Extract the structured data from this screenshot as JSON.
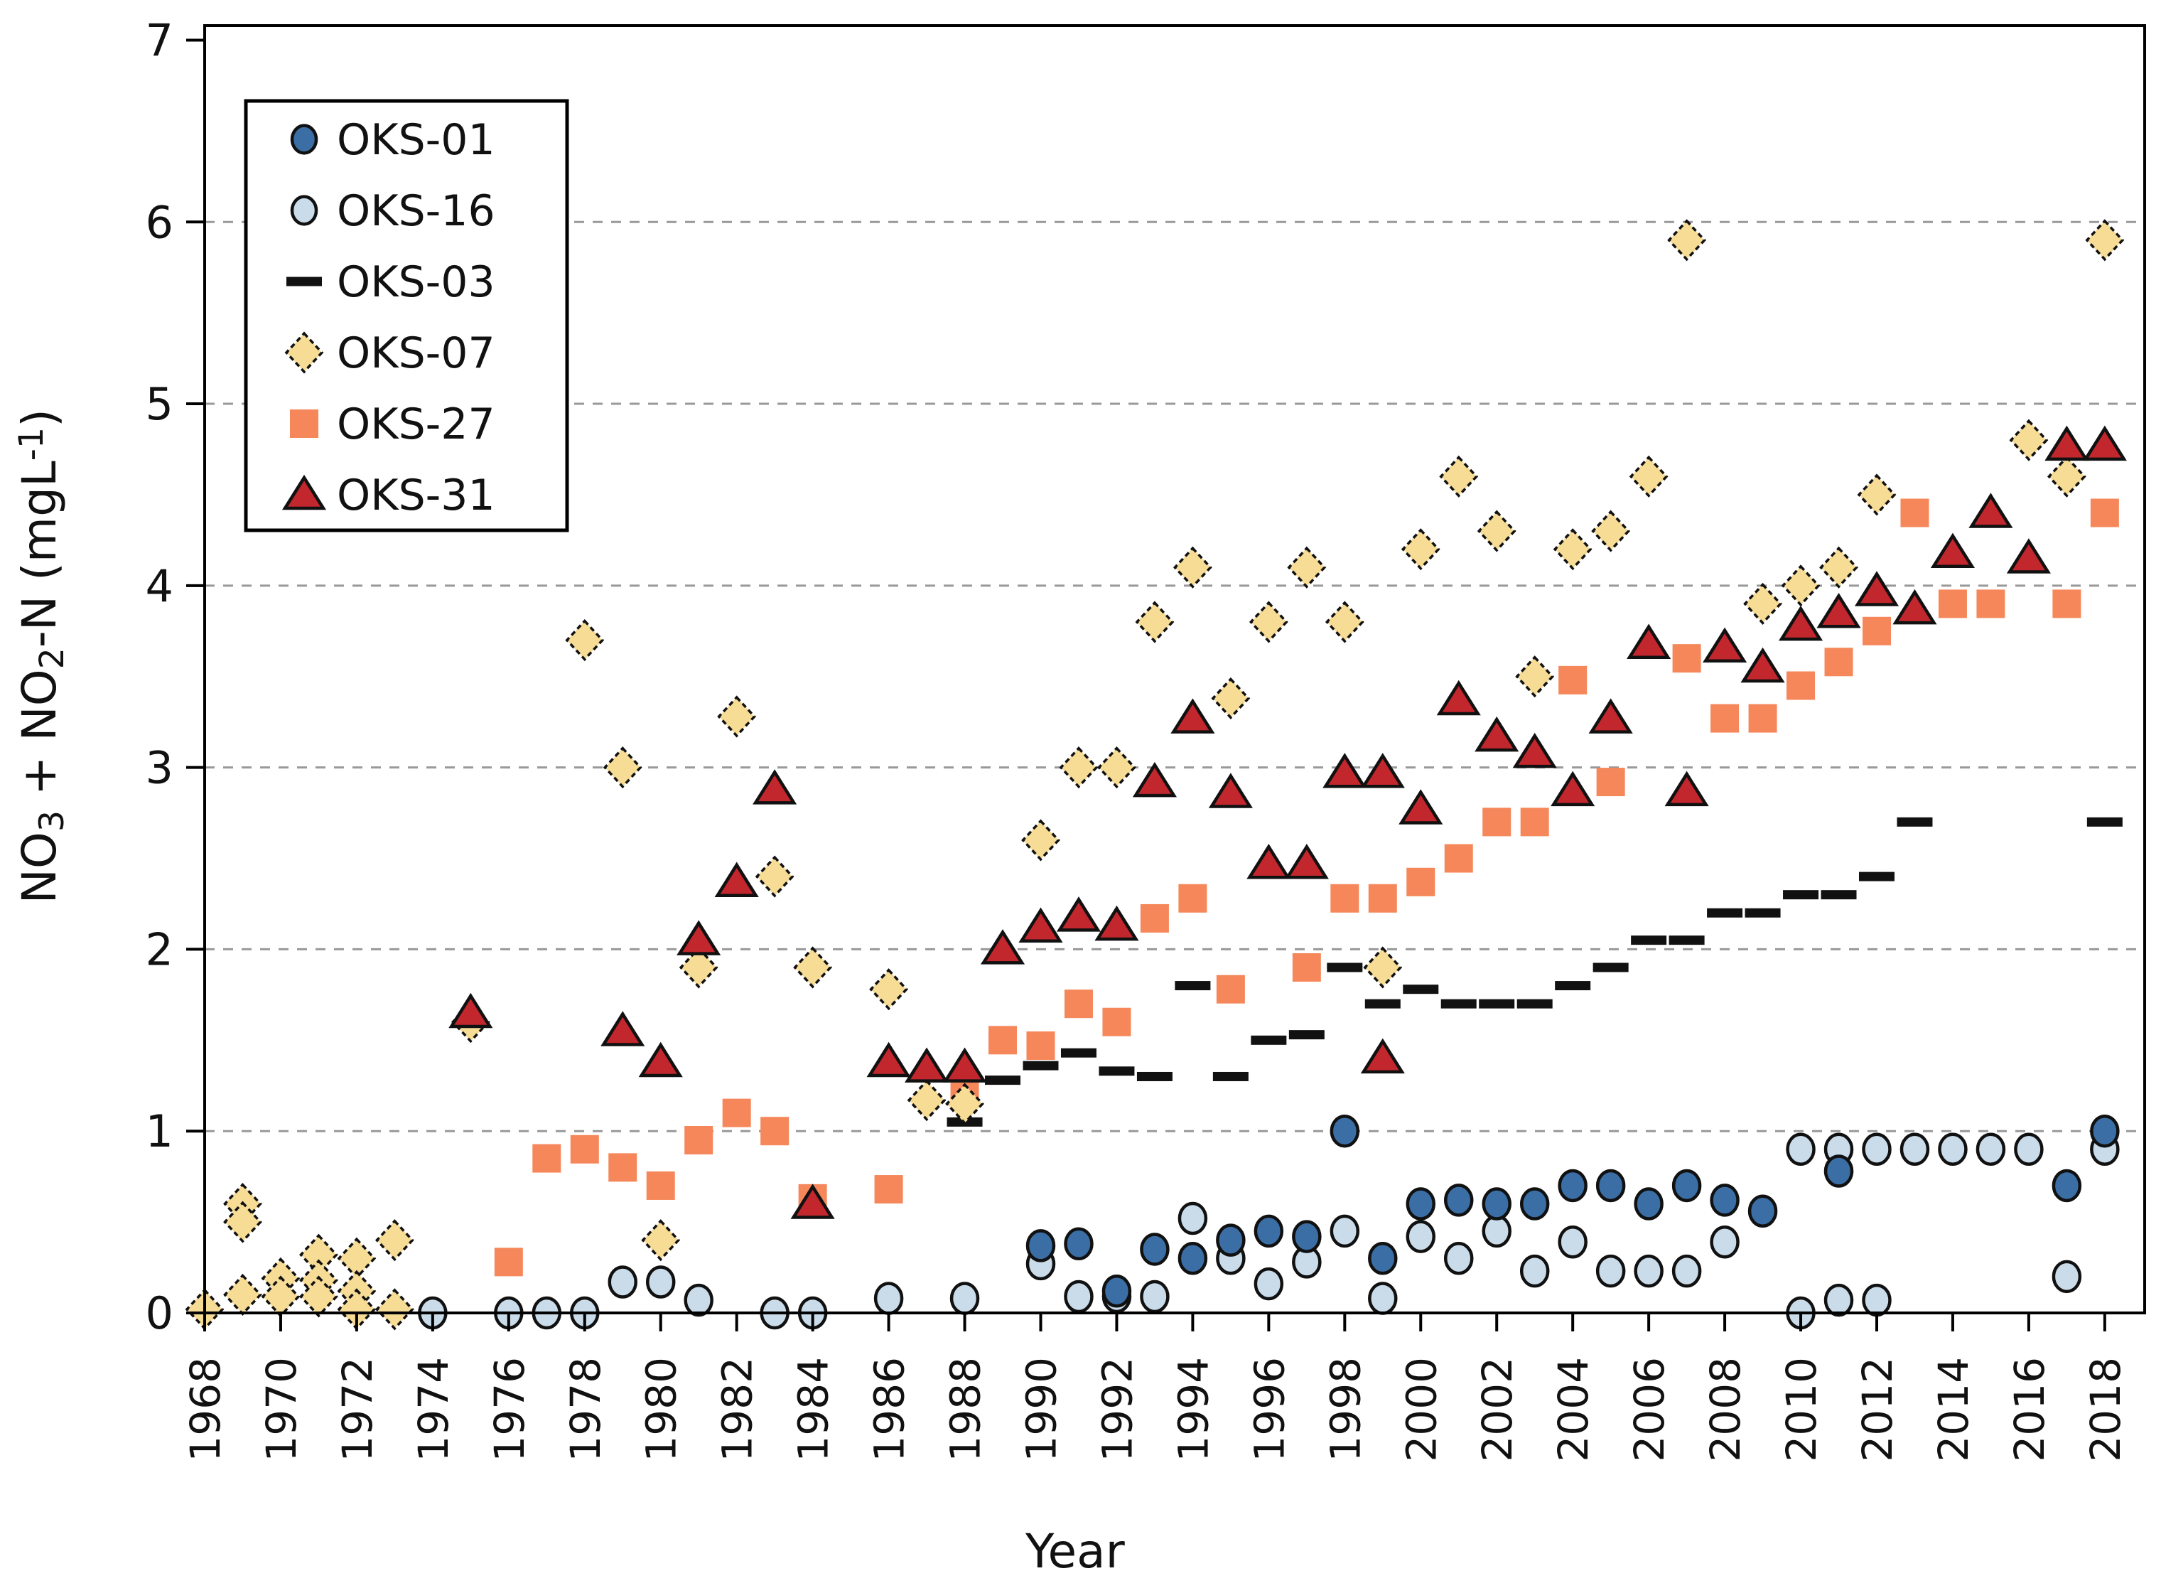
{
  "axes": {
    "x_label": "Year",
    "y_label_plain": "NO3 + NO2-N (mgL-1)",
    "y_label_rich": [
      {
        "t": "NO"
      },
      {
        "sub": "3"
      },
      {
        "t": " + NO"
      },
      {
        "sub": "2"
      },
      {
        "t": "-N (mgL"
      },
      {
        "sup": "-1"
      },
      {
        "t": ")"
      }
    ],
    "y_ticks": [
      "0",
      "1",
      "2",
      "3",
      "4",
      "5",
      "6",
      "7"
    ],
    "x_ticks": [
      "1968",
      "1970",
      "1972",
      "1974",
      "1976",
      "1978",
      "1980",
      "1982",
      "1984",
      "1986",
      "1988",
      "1990",
      "1992",
      "1994",
      "1996",
      "1998",
      "2000",
      "2002",
      "2004",
      "2006",
      "2008",
      "2010",
      "2012",
      "2014",
      "2016",
      "2018"
    ],
    "ylim": [
      0,
      7.08
    ],
    "xlim": [
      1968,
      2019.05
    ]
  },
  "colors": {
    "dark_blue": "#3A6EA5",
    "light_blue": "#CADCEA",
    "black": "#111111",
    "yellow": "#F7DC96",
    "orange": "#F5875A",
    "red": "#C1272D",
    "grid": "#999999",
    "axis": "#000000"
  },
  "legend": [
    {
      "id": "OKS-01",
      "label": "OKS-01",
      "marker": "circle",
      "color": "#3A6EA5"
    },
    {
      "id": "OKS-16",
      "label": "OKS-16",
      "marker": "circle",
      "color": "#CADCEA"
    },
    {
      "id": "OKS-03",
      "label": "OKS-03",
      "marker": "dash",
      "color": "#111111"
    },
    {
      "id": "OKS-07",
      "label": "OKS-07",
      "marker": "diamond",
      "color": "#F7DC96"
    },
    {
      "id": "OKS-27",
      "label": "OKS-27",
      "marker": "square",
      "color": "#F5875A"
    },
    {
      "id": "OKS-31",
      "label": "OKS-31",
      "marker": "triangle",
      "color": "#C1272D"
    }
  ],
  "chart_data": {
    "type": "scatter",
    "title": "",
    "xlabel": "Year",
    "ylabel": "NO3 + NO2-N (mgL-1)",
    "xlim": [
      1968,
      2019
    ],
    "ylim": [
      0,
      7
    ],
    "grid": "horizontal dashed at 1..6",
    "legend_position": "top-left",
    "series": [
      {
        "name": "OKS-16",
        "marker": "circle",
        "color": "#CADCEA",
        "points": [
          [
            1974,
            0.0
          ],
          [
            1976,
            0.0
          ],
          [
            1977,
            0.0
          ],
          [
            1978,
            0.0
          ],
          [
            1979,
            0.17
          ],
          [
            1980,
            0.17
          ],
          [
            1981,
            0.07
          ],
          [
            1983,
            0.0
          ],
          [
            1984,
            0.0
          ],
          [
            1986,
            0.08
          ],
          [
            1988,
            0.08
          ],
          [
            1990,
            0.27
          ],
          [
            1991,
            0.09
          ],
          [
            1992,
            0.09
          ],
          [
            1993,
            0.09
          ],
          [
            1994,
            0.52
          ],
          [
            1995,
            0.3
          ],
          [
            1996,
            0.16
          ],
          [
            1997,
            0.28
          ],
          [
            1998,
            0.45
          ],
          [
            1999,
            0.08
          ],
          [
            2000,
            0.42
          ],
          [
            2001,
            0.3
          ],
          [
            2002,
            0.45
          ],
          [
            2003,
            0.23
          ],
          [
            2004,
            0.39
          ],
          [
            2005,
            0.23
          ],
          [
            2006,
            0.23
          ],
          [
            2007,
            0.23
          ],
          [
            2008,
            0.39
          ],
          [
            2010,
            0.9
          ],
          [
            2010,
            0.0
          ],
          [
            2011,
            0.9
          ],
          [
            2011,
            0.07
          ],
          [
            2012,
            0.9
          ],
          [
            2012,
            0.07
          ],
          [
            2013,
            0.9
          ],
          [
            2014,
            0.9
          ],
          [
            2015,
            0.9
          ],
          [
            2016,
            0.9
          ],
          [
            2017,
            0.2
          ],
          [
            2018,
            0.9
          ]
        ]
      },
      {
        "name": "OKS-01",
        "marker": "circle",
        "color": "#3A6EA5",
        "points": [
          [
            1990,
            0.37
          ],
          [
            1991,
            0.38
          ],
          [
            1992,
            0.12
          ],
          [
            1993,
            0.35
          ],
          [
            1994,
            0.3
          ],
          [
            1995,
            0.4
          ],
          [
            1996,
            0.45
          ],
          [
            1997,
            0.42
          ],
          [
            1998,
            1.0
          ],
          [
            1999,
            0.3
          ],
          [
            2000,
            0.6
          ],
          [
            2001,
            0.62
          ],
          [
            2002,
            0.6
          ],
          [
            2003,
            0.6
          ],
          [
            2004,
            0.7
          ],
          [
            2005,
            0.7
          ],
          [
            2006,
            0.6
          ],
          [
            2007,
            0.7
          ],
          [
            2008,
            0.62
          ],
          [
            2009,
            0.56
          ],
          [
            2011,
            0.78
          ],
          [
            2017,
            0.7
          ],
          [
            2018,
            1.0
          ]
        ]
      },
      {
        "name": "OKS-03",
        "marker": "dash",
        "color": "#111111",
        "points": [
          [
            1988,
            1.05
          ],
          [
            1989,
            1.28
          ],
          [
            1990,
            1.36
          ],
          [
            1991,
            1.43
          ],
          [
            1992,
            1.33
          ],
          [
            1993,
            1.3
          ],
          [
            1994,
            1.8
          ],
          [
            1995,
            1.3
          ],
          [
            1996,
            1.5
          ],
          [
            1997,
            1.53
          ],
          [
            1998,
            1.9
          ],
          [
            1999,
            1.7
          ],
          [
            2000,
            1.78
          ],
          [
            2001,
            1.7
          ],
          [
            2002,
            1.7
          ],
          [
            2003,
            1.7
          ],
          [
            2004,
            1.8
          ],
          [
            2005,
            1.9
          ],
          [
            2006,
            2.05
          ],
          [
            2007,
            2.05
          ],
          [
            2008,
            2.2
          ],
          [
            2009,
            2.2
          ],
          [
            2010,
            2.3
          ],
          [
            2011,
            2.3
          ],
          [
            2012,
            2.4
          ],
          [
            2013,
            2.7
          ],
          [
            2018,
            2.7
          ]
        ]
      },
      {
        "name": "OKS-27",
        "marker": "square",
        "color": "#F5875A",
        "points": [
          [
            1976,
            0.28
          ],
          [
            1977,
            0.85
          ],
          [
            1978,
            0.9
          ],
          [
            1979,
            0.8
          ],
          [
            1980,
            0.7
          ],
          [
            1981,
            0.95
          ],
          [
            1982,
            1.1
          ],
          [
            1983,
            1.0
          ],
          [
            1984,
            0.63
          ],
          [
            1986,
            0.68
          ],
          [
            1988,
            1.25
          ],
          [
            1989,
            1.5
          ],
          [
            1990,
            1.47
          ],
          [
            1991,
            1.7
          ],
          [
            1992,
            1.6
          ],
          [
            1993,
            2.17
          ],
          [
            1994,
            2.28
          ],
          [
            1995,
            1.78
          ],
          [
            1997,
            1.9
          ],
          [
            1998,
            2.28
          ],
          [
            1999,
            2.28
          ],
          [
            2000,
            2.37
          ],
          [
            2001,
            2.5
          ],
          [
            2002,
            2.7
          ],
          [
            2003,
            2.7
          ],
          [
            2004,
            3.48
          ],
          [
            2005,
            2.92
          ],
          [
            2007,
            3.6
          ],
          [
            2008,
            3.27
          ],
          [
            2009,
            3.27
          ],
          [
            2010,
            3.45
          ],
          [
            2011,
            3.58
          ],
          [
            2012,
            3.75
          ],
          [
            2013,
            4.4
          ],
          [
            2014,
            3.9
          ],
          [
            2015,
            3.9
          ],
          [
            2017,
            3.9
          ],
          [
            2018,
            4.4
          ]
        ]
      },
      {
        "name": "OKS-07",
        "marker": "diamond",
        "color": "#F7DC96",
        "points": [
          [
            1968,
            0.02
          ],
          [
            1969,
            0.6
          ],
          [
            1969,
            0.5
          ],
          [
            1969,
            0.1
          ],
          [
            1970,
            0.19
          ],
          [
            1970,
            0.09
          ],
          [
            1971,
            0.32
          ],
          [
            1971,
            0.18
          ],
          [
            1971,
            0.09
          ],
          [
            1972,
            0.3
          ],
          [
            1972,
            0.12
          ],
          [
            1972,
            0.02
          ],
          [
            1973,
            0.4
          ],
          [
            1973,
            0.02
          ],
          [
            1975,
            1.6
          ],
          [
            1978,
            3.7
          ],
          [
            1979,
            3.0
          ],
          [
            1980,
            0.4
          ],
          [
            1981,
            1.9
          ],
          [
            1982,
            3.28
          ],
          [
            1983,
            2.4
          ],
          [
            1984,
            1.9
          ],
          [
            1986,
            1.78
          ],
          [
            1987,
            1.17
          ],
          [
            1988,
            1.15
          ],
          [
            1990,
            2.6
          ],
          [
            1991,
            3.0
          ],
          [
            1992,
            3.0
          ],
          [
            1993,
            3.8
          ],
          [
            1994,
            4.1
          ],
          [
            1995,
            3.38
          ],
          [
            1996,
            3.8
          ],
          [
            1997,
            4.1
          ],
          [
            1998,
            3.8
          ],
          [
            1999,
            1.9
          ],
          [
            2000,
            4.2
          ],
          [
            2001,
            4.6
          ],
          [
            2002,
            4.3
          ],
          [
            2003,
            3.5
          ],
          [
            2004,
            4.2
          ],
          [
            2005,
            4.3
          ],
          [
            2006,
            4.6
          ],
          [
            2007,
            5.9
          ],
          [
            2009,
            3.9
          ],
          [
            2010,
            4.0
          ],
          [
            2011,
            4.1
          ],
          [
            2012,
            4.5
          ],
          [
            2016,
            4.8
          ],
          [
            2017,
            4.6
          ],
          [
            2018,
            5.9
          ]
        ]
      },
      {
        "name": "OKS-31",
        "marker": "triangle",
        "color": "#C1272D",
        "points": [
          [
            1975,
            1.65
          ],
          [
            1979,
            1.55
          ],
          [
            1980,
            1.38
          ],
          [
            1981,
            2.05
          ],
          [
            1982,
            2.37
          ],
          [
            1983,
            2.88
          ],
          [
            1984,
            0.6
          ],
          [
            1986,
            1.38
          ],
          [
            1987,
            1.35
          ],
          [
            1988,
            1.35
          ],
          [
            1989,
            2.0
          ],
          [
            1990,
            2.12
          ],
          [
            1991,
            2.18
          ],
          [
            1992,
            2.13
          ],
          [
            1993,
            2.92
          ],
          [
            1994,
            3.27
          ],
          [
            1995,
            2.86
          ],
          [
            1996,
            2.47
          ],
          [
            1997,
            2.47
          ],
          [
            1998,
            2.97
          ],
          [
            1999,
            2.97
          ],
          [
            1999,
            1.4
          ],
          [
            2000,
            2.77
          ],
          [
            2001,
            3.37
          ],
          [
            2002,
            3.17
          ],
          [
            2003,
            3.08
          ],
          [
            2004,
            2.87
          ],
          [
            2005,
            3.27
          ],
          [
            2006,
            3.68
          ],
          [
            2007,
            2.87
          ],
          [
            2008,
            3.66
          ],
          [
            2009,
            3.55
          ],
          [
            2010,
            3.78
          ],
          [
            2011,
            3.85
          ],
          [
            2012,
            3.97
          ],
          [
            2013,
            3.87
          ],
          [
            2014,
            4.18
          ],
          [
            2015,
            4.4
          ],
          [
            2016,
            4.15
          ],
          [
            2017,
            4.77
          ],
          [
            2018,
            4.77
          ]
        ]
      }
    ]
  }
}
